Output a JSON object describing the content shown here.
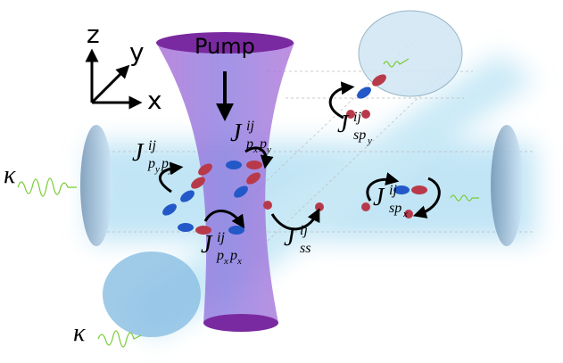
{
  "axes": {
    "z": "z",
    "y": "y",
    "x": "x"
  },
  "pump": "Pump",
  "decay": [
    "κ",
    "κ"
  ],
  "couplings": [
    {
      "base": "J",
      "sup": "ij",
      "sub": [
        {
          "p": "p",
          "s": "y"
        },
        {
          "p": "p",
          "s": "y"
        }
      ]
    },
    {
      "base": "J",
      "sup": "ij",
      "sub": [
        {
          "p": "p",
          "s": "x"
        },
        {
          "p": "p",
          "s": "y"
        }
      ]
    },
    {
      "base": "J",
      "sup": "ij",
      "sub": [
        {
          "p": "p",
          "s": "x"
        },
        {
          "p": "p",
          "s": "x"
        }
      ]
    },
    {
      "base": "J",
      "sup": "ij",
      "sub": [
        {
          "p": "ss"
        }
      ]
    },
    {
      "base": "J",
      "sup": "ij",
      "sub": [
        {
          "p": "sp",
          "s": "y"
        }
      ]
    },
    {
      "base": "J",
      "sup": "ij",
      "sub": [
        {
          "p": "sp",
          "s": "x"
        }
      ]
    }
  ]
}
